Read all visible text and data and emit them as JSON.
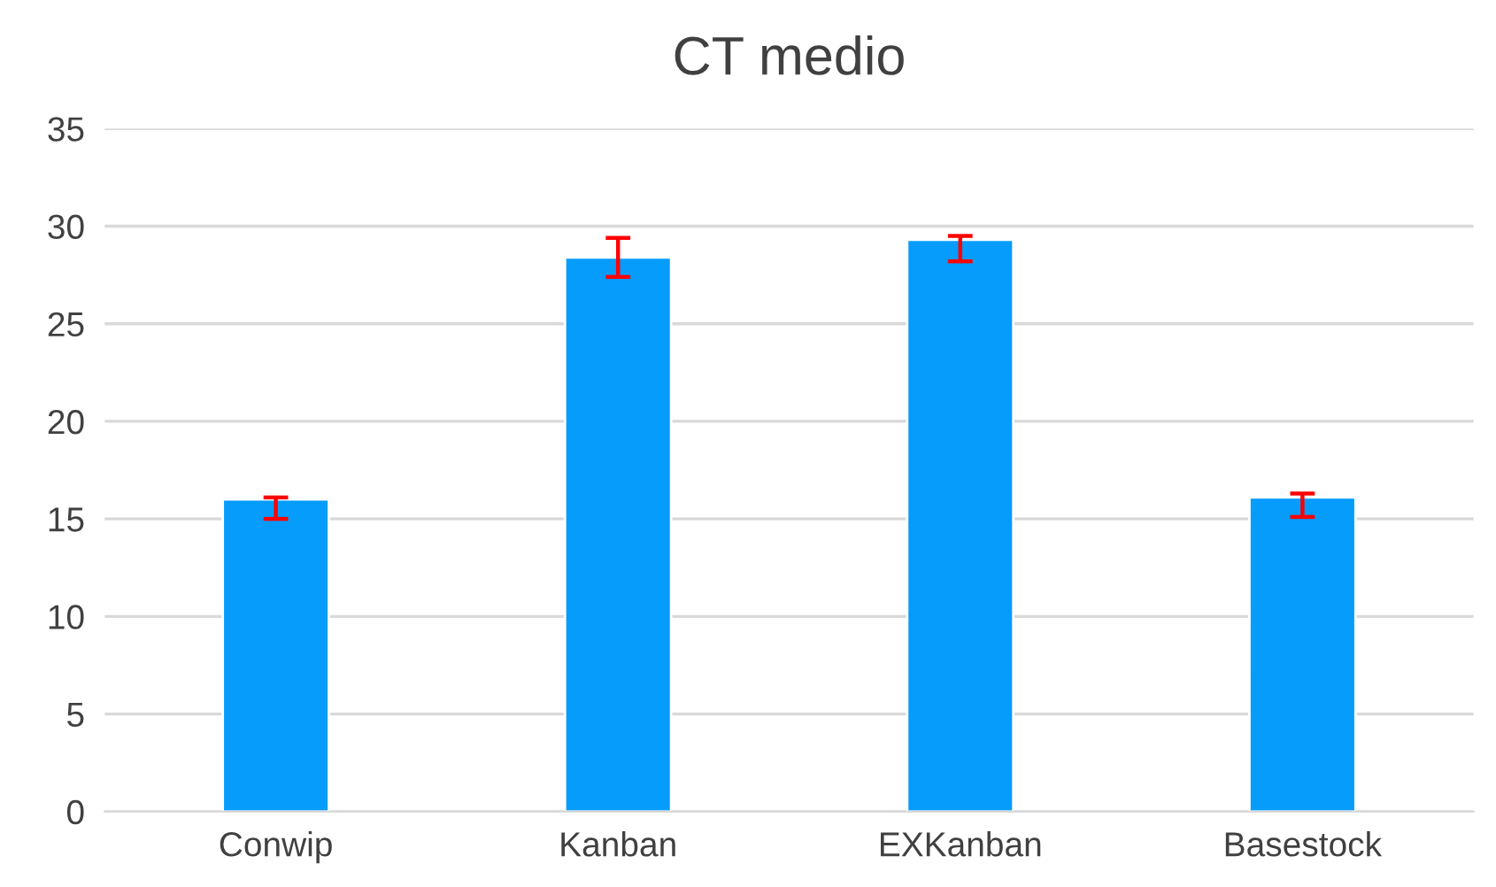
{
  "chart_data": {
    "type": "bar",
    "title": "CT medio",
    "categories": [
      "Conwip",
      "Kanban",
      "EXKanban",
      "Basestock"
    ],
    "values": [
      16.0,
      28.4,
      29.3,
      16.1
    ],
    "errors": [
      [
        15.0,
        16.1
      ],
      [
        27.4,
        29.4
      ],
      [
        28.2,
        29.5
      ],
      [
        15.1,
        16.3
      ]
    ],
    "color": "#069cfc",
    "ylim": [
      0,
      35
    ],
    "yticks": [
      0,
      5,
      10,
      15,
      20,
      25,
      30,
      35
    ],
    "grid": "y"
  }
}
